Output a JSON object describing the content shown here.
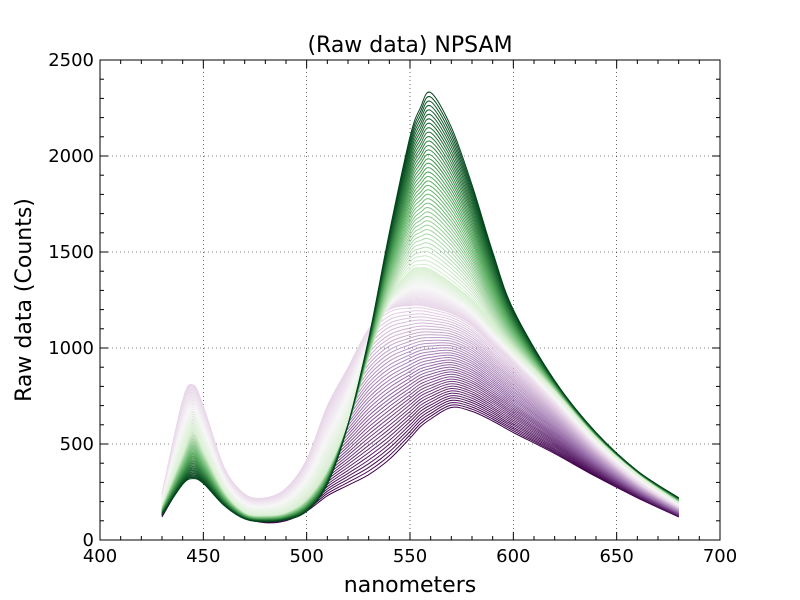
{
  "chart_data": {
    "type": "line",
    "title": "(Raw data) NPSAM",
    "xlabel": "nanometers",
    "ylabel": "Raw data (Counts)",
    "xlim": [
      400,
      700
    ],
    "ylim": [
      0,
      2500
    ],
    "xticks": [
      "400",
      "450",
      "500",
      "550",
      "600",
      "650",
      "700"
    ],
    "yticks": [
      "0",
      "500",
      "1000",
      "1500",
      "2000",
      "2500"
    ],
    "grid": true,
    "legend": "none",
    "colormap": [
      "#40004b",
      "#9970ab",
      "#e7d4e8",
      "#f7f7f7",
      "#d9f0d3",
      "#5aae61",
      "#00441b"
    ],
    "series_count": 120,
    "x": [
      430,
      440,
      445,
      450,
      460,
      470,
      480,
      490,
      500,
      510,
      520,
      530,
      540,
      550,
      555,
      560,
      570,
      580,
      590,
      600,
      620,
      640,
      660,
      680
    ],
    "envelope": [
      {
        "name": "",
        "values": [
          130,
          290,
          320,
          295,
          180,
          110,
          95,
          105,
          150,
          290,
          600,
          1050,
          1600,
          2100,
          2250,
          2330,
          2150,
          1850,
          1500,
          1200,
          830,
          560,
          360,
          220
        ]
      },
      {
        "name": "",
        "values": [
          170,
          440,
          560,
          460,
          250,
          140,
          125,
          140,
          210,
          360,
          600,
          950,
          1250,
          1400,
          1420,
          1410,
          1340,
          1250,
          1120,
          1000,
          780,
          540,
          350,
          200
        ]
      },
      {
        "name": "",
        "values": [
          240,
          730,
          810,
          700,
          380,
          240,
          220,
          270,
          420,
          700,
          900,
          1100,
          1200,
          1220,
          1220,
          1210,
          1180,
          1120,
          1020,
          920,
          700,
          480,
          300,
          170
        ]
      },
      {
        "name": "",
        "values": [
          120,
          300,
          325,
          300,
          185,
          115,
          90,
          100,
          150,
          230,
          285,
          340,
          420,
          530,
          590,
          630,
          690,
          670,
          620,
          560,
          450,
          330,
          220,
          120
        ]
      }
    ]
  }
}
